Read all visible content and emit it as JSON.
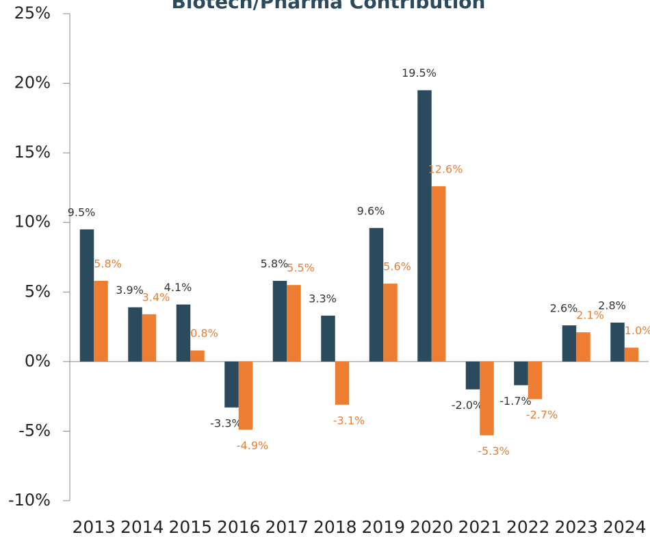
{
  "chart_data": {
    "type": "bar",
    "title": "Biotech/Pharma Contribution",
    "categories": [
      "2013",
      "2014",
      "2015",
      "2016",
      "2017",
      "2018",
      "2019",
      "2020",
      "2021",
      "2022",
      "2023",
      "2024"
    ],
    "series": [
      {
        "color": "#2c4a5e",
        "values": [
          9.5,
          3.9,
          4.1,
          -3.3,
          5.8,
          3.3,
          9.6,
          19.5,
          -2.0,
          -1.7,
          2.6,
          2.8
        ],
        "value_labels": [
          "9.5%",
          "3.9%",
          "4.1%",
          "-3.3%",
          "5.8%",
          "3.3%",
          "9.6%",
          "19.5%",
          "-2.0%",
          "-1.7%",
          "2.6%",
          "2.8%"
        ]
      },
      {
        "color": "#ed7d31",
        "values": [
          5.8,
          3.4,
          0.8,
          -4.9,
          5.5,
          -3.1,
          5.6,
          12.6,
          -5.3,
          -2.7,
          2.1,
          1.0
        ],
        "value_labels": [
          "5.8%",
          "3.4%",
          "0.8%",
          "-4.9%",
          "5.5%",
          "-3.1%",
          "5.6%",
          "12.6%",
          "-5.3%",
          "-2.7%",
          "2.1%",
          "1.0%"
        ]
      }
    ],
    "ylim": [
      -10,
      25
    ],
    "yticks": [
      {
        "value": -10,
        "label": "-10%"
      },
      {
        "value": -5,
        "label": "-5%"
      },
      {
        "value": 0,
        "label": "0%"
      },
      {
        "value": 5,
        "label": "5%"
      },
      {
        "value": 10,
        "label": "10%"
      },
      {
        "value": 15,
        "label": "15%"
      },
      {
        "value": 20,
        "label": "20%"
      },
      {
        "value": 25,
        "label": "25%"
      }
    ]
  }
}
